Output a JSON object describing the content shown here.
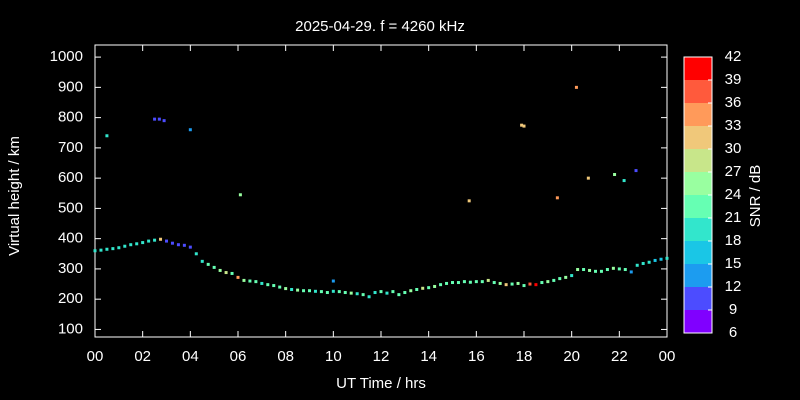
{
  "chart_data": {
    "type": "scatter",
    "title": "2025-04-29. f = 4260 kHz",
    "xlabel": "UT Time / hrs",
    "ylabel": "Virtual height / km",
    "xlim": [
      0,
      24
    ],
    "ylim": [
      75,
      1040
    ],
    "xticks": [
      {
        "value": 0,
        "label": "00"
      },
      {
        "value": 2,
        "label": "02"
      },
      {
        "value": 4,
        "label": "04"
      },
      {
        "value": 6,
        "label": "06"
      },
      {
        "value": 8,
        "label": "08"
      },
      10,
      12,
      14,
      16,
      18,
      20,
      22,
      {
        "value": 24,
        "label": "00"
      }
    ],
    "yticks": [
      100,
      200,
      300,
      400,
      500,
      600,
      700,
      800,
      900,
      1000
    ],
    "colorbar": {
      "label": "SNR / dB",
      "ticks": [
        6,
        9,
        12,
        15,
        18,
        21,
        24,
        27,
        30,
        33,
        36,
        39,
        42
      ],
      "colors": [
        "#8000ff",
        "#4c4cff",
        "#1c9cf0",
        "#1ac6e6",
        "#32e6cc",
        "#66ffb3",
        "#99ffa0",
        "#c8e68a",
        "#f0c87a",
        "#ff9a5a",
        "#ff5a3c",
        "#ff0000"
      ]
    },
    "x": [
      0.0,
      0.25,
      0.5,
      0.75,
      1.0,
      1.25,
      1.5,
      1.75,
      2.0,
      2.25,
      2.5,
      2.75,
      3.0,
      3.25,
      3.5,
      3.75,
      4.0,
      4.25,
      4.5,
      4.75,
      5.0,
      5.25,
      5.5,
      5.75,
      6.0,
      6.25,
      6.5,
      6.75,
      7.0,
      7.25,
      7.5,
      7.75,
      8.0,
      8.25,
      8.5,
      8.75,
      9.0,
      9.25,
      9.5,
      9.75,
      10.0,
      10.25,
      10.5,
      10.75,
      11.0,
      11.25,
      11.5,
      11.75,
      12.0,
      12.25,
      12.5,
      12.75,
      13.0,
      13.25,
      13.5,
      13.75,
      14.0,
      14.25,
      14.5,
      14.75,
      15.0,
      15.25,
      15.5,
      15.75,
      16.0,
      16.25,
      16.5,
      16.75,
      17.0,
      17.25,
      17.5,
      17.75,
      18.0,
      18.25,
      18.5,
      18.75,
      19.0,
      19.25,
      19.5,
      19.75,
      20.0,
      20.25,
      20.5,
      20.75,
      21.0,
      21.25,
      21.5,
      21.75,
      22.0,
      22.25,
      22.5,
      22.75,
      23.0,
      23.25,
      23.5,
      23.75,
      24.0,
      0.5,
      2.5,
      2.7,
      2.9,
      4.0,
      6.1,
      10.0,
      15.7,
      17.9,
      18.0,
      19.4,
      20.2,
      20.7,
      21.8,
      22.2,
      22.7
    ],
    "values": [
      360,
      362,
      365,
      367,
      370,
      375,
      380,
      383,
      387,
      392,
      395,
      398,
      392,
      385,
      380,
      378,
      372,
      350,
      325,
      315,
      305,
      295,
      288,
      285,
      272,
      262,
      260,
      258,
      252,
      248,
      245,
      240,
      235,
      232,
      230,
      228,
      228,
      226,
      225,
      222,
      226,
      225,
      222,
      220,
      218,
      215,
      208,
      222,
      225,
      220,
      225,
      215,
      222,
      228,
      232,
      236,
      238,
      242,
      248,
      252,
      255,
      255,
      258,
      256,
      258,
      258,
      262,
      255,
      252,
      248,
      250,
      252,
      245,
      250,
      248,
      255,
      258,
      262,
      268,
      272,
      278,
      298,
      298,
      295,
      292,
      292,
      298,
      302,
      300,
      298,
      290,
      312,
      318,
      322,
      328,
      332,
      335,
      740,
      795,
      795,
      790,
      760,
      545,
      260,
      525,
      775,
      772,
      535,
      900,
      600,
      612,
      592,
      625
    ],
    "snr": [
      19,
      19,
      18,
      19,
      19,
      20,
      19,
      20,
      19,
      20,
      20,
      30,
      10,
      10,
      11,
      10,
      10,
      19,
      20,
      21,
      22,
      25,
      28,
      21,
      33,
      24,
      21,
      22,
      20,
      21,
      23,
      22,
      25,
      20,
      24,
      21,
      23,
      20,
      22,
      21,
      20,
      22,
      21,
      24,
      20,
      21,
      19,
      20,
      21,
      18,
      22,
      23,
      21,
      25,
      22,
      27,
      21,
      24,
      22,
      21,
      22,
      21,
      23,
      22,
      21,
      23,
      28,
      22,
      24,
      30,
      22,
      25,
      21,
      36,
      39,
      22,
      25,
      21,
      22,
      24,
      20,
      25,
      22,
      24,
      21,
      22,
      23,
      24,
      22,
      21,
      12,
      20,
      18,
      19,
      17,
      16,
      18,
      18,
      10,
      10,
      10,
      12,
      26,
      12,
      30,
      32,
      31,
      34,
      33,
      31,
      25,
      20,
      10
    ]
  }
}
